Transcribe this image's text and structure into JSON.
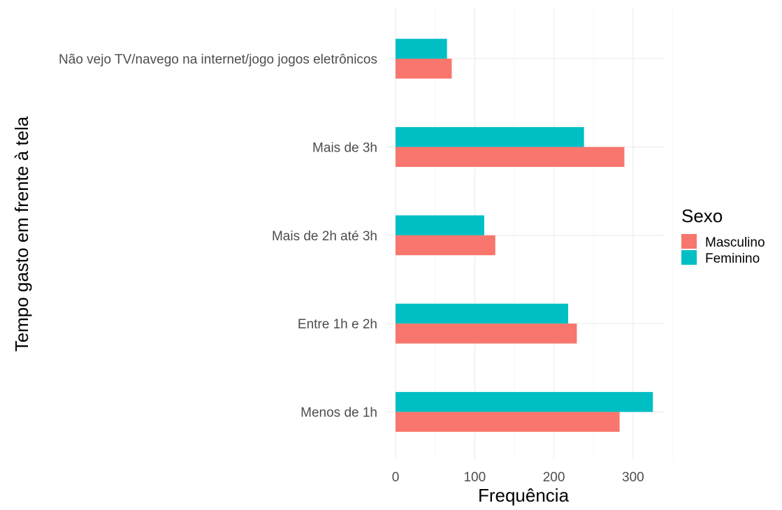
{
  "chart_data": {
    "type": "bar",
    "orientation": "horizontal",
    "categories": [
      "Não vejo TV/navego na internet/jogo jogos eletrônicos",
      "Mais de 3h",
      "Mais de 2h até 3h",
      "Entre 1h e 2h",
      "Menos de 1h"
    ],
    "series": [
      {
        "name": "Feminino",
        "color": "#00BFC4",
        "values": [
          65,
          238,
          112,
          218,
          325
        ]
      },
      {
        "name": "Masculino",
        "color": "#F8766D",
        "values": [
          71,
          289,
          126,
          229,
          283
        ]
      }
    ],
    "xlabel": "Frequência",
    "ylabel": "Tempo gasto em frente à tela",
    "xlim": [
      0,
      340
    ],
    "xticks": [
      0,
      100,
      200,
      300
    ],
    "grid": true,
    "legend": {
      "title": "Sexo",
      "position": "right",
      "items": [
        {
          "label": "Masculino",
          "color": "#F8766D"
        },
        {
          "label": "Feminino",
          "color": "#00BFC4"
        }
      ]
    }
  }
}
